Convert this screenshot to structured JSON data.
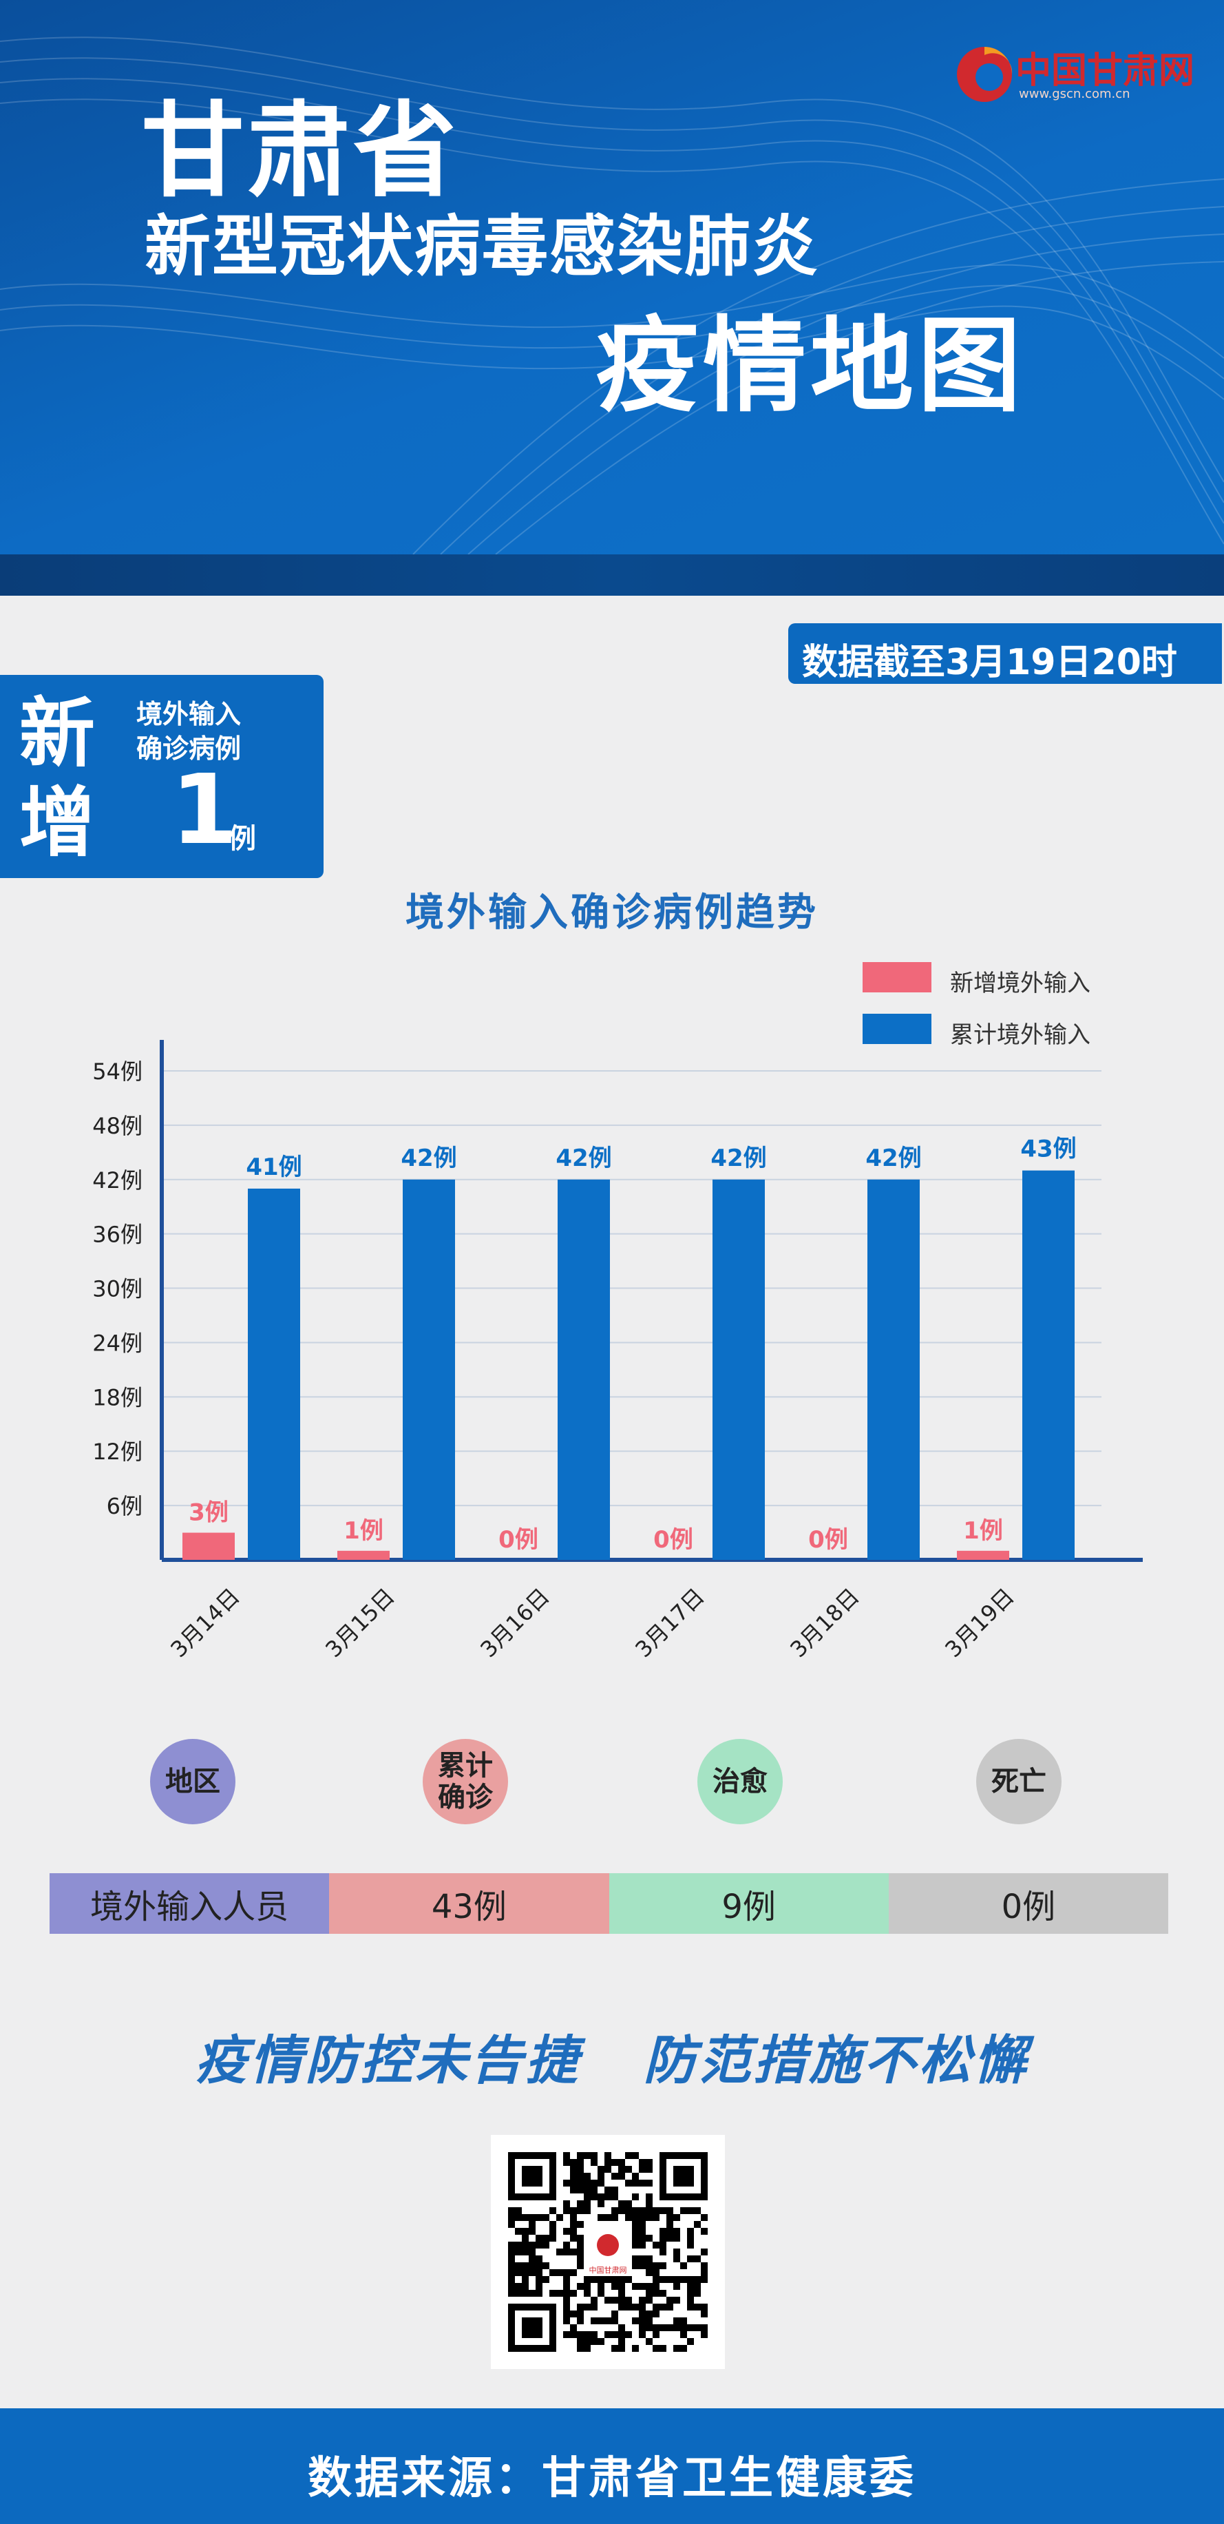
{
  "header": {
    "title_line1": "甘肃省",
    "title_line2": "新型冠状病毒感染肺炎",
    "title_line3": "疫情地图",
    "logo_text": "中国甘肃网",
    "logo_url": "www.gscn.com.cn"
  },
  "date_badge": "数据截至3月19日20时",
  "new_box": {
    "label": "新增",
    "desc_line1": "境外输入",
    "desc_line2": "确诊病例",
    "value": "1",
    "unit": "例"
  },
  "chart_data": {
    "type": "bar",
    "title": "境外输入确诊病例趋势",
    "categories": [
      "3月14日",
      "3月15日",
      "3月16日",
      "3月17日",
      "3月18日",
      "3月19日"
    ],
    "series": [
      {
        "name": "新增境外输入",
        "values": [
          3,
          1,
          0,
          0,
          0,
          1
        ],
        "labels": [
          "3例",
          "1例",
          "0例",
          "0例",
          "0例",
          "1例"
        ],
        "color": "#f0687a"
      },
      {
        "name": "累计境外输入",
        "values": [
          41,
          42,
          42,
          42,
          42,
          43
        ],
        "labels": [
          "41例",
          "42例",
          "42例",
          "42例",
          "42例",
          "43例"
        ],
        "color": "#0c6fc6"
      }
    ],
    "yticks": [
      "6例",
      "12例",
      "18例",
      "24例",
      "30例",
      "36例",
      "42例",
      "48例",
      "54例"
    ],
    "ylim": [
      0,
      54
    ],
    "grid": true,
    "legend": "top-right"
  },
  "table": {
    "headers": [
      {
        "label": "地区",
        "color": "#8e8fd2"
      },
      {
        "label": "累计确诊",
        "color": "#e9a0a0"
      },
      {
        "label": "治愈",
        "color": "#a5e3c4"
      },
      {
        "label": "死亡",
        "color": "#c8c8c8"
      }
    ],
    "row": [
      {
        "value": "境外输入人员",
        "color": "#8e8fd2"
      },
      {
        "value": "43例",
        "color": "#e9a0a0"
      },
      {
        "value": "9例",
        "color": "#a5e3c4"
      },
      {
        "value": "0例",
        "color": "#c8c8c8"
      }
    ]
  },
  "slogan": "疫情防控未告捷   防范措施不松懈",
  "qr": {
    "logo_text": "中国甘肃网"
  },
  "footer": "数据来源：甘肃省卫生健康委"
}
